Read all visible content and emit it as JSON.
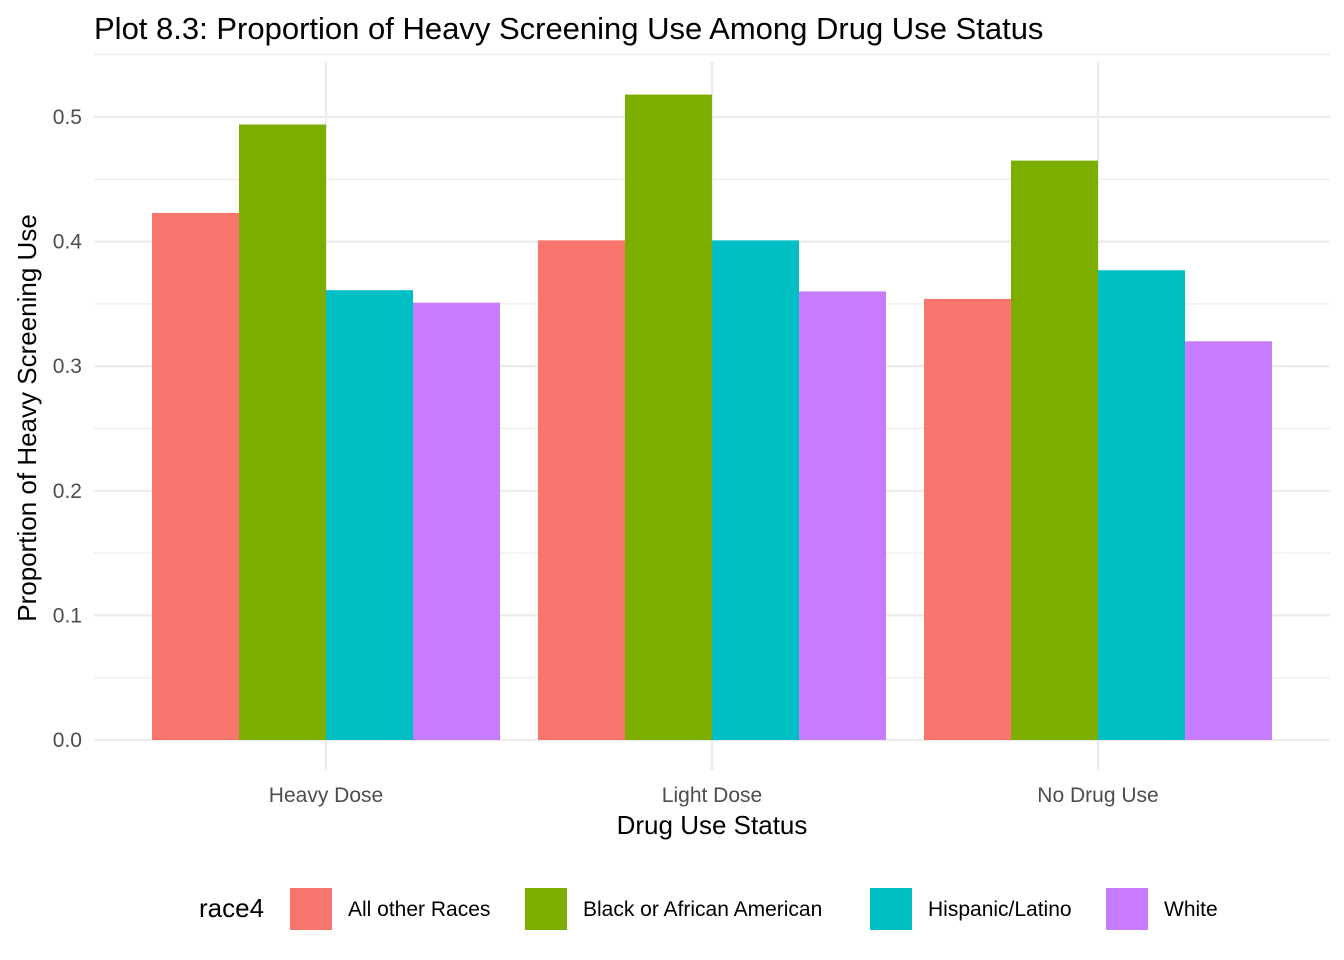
{
  "chart_data": {
    "type": "bar",
    "title": "Plot 8.3: Proportion of Heavy Screening Use Among Drug Use Status",
    "xlabel": "Drug Use Status",
    "ylabel": "Proportion of Heavy Screening Use",
    "categories": [
      "Heavy Dose",
      "Light Dose",
      "No Drug Use"
    ],
    "series": [
      {
        "name": "All other Races",
        "color": "#F8766D",
        "values": [
          0.423,
          0.401,
          0.354
        ]
      },
      {
        "name": "Black or African American",
        "color": "#7CAE00",
        "values": [
          0.494,
          0.518,
          0.465
        ]
      },
      {
        "name": "Hispanic/Latino",
        "color": "#00BFC4",
        "values": [
          0.361,
          0.401,
          0.377
        ]
      },
      {
        "name": "White",
        "color": "#C77CFF",
        "values": [
          0.351,
          0.36,
          0.32
        ]
      }
    ],
    "ylim": [
      0,
      0.5
    ],
    "yticks": [
      "0.0",
      "0.1",
      "0.2",
      "0.3",
      "0.4",
      "0.5"
    ],
    "grid": true,
    "legend": {
      "title": "race4",
      "position": "bottom"
    }
  }
}
